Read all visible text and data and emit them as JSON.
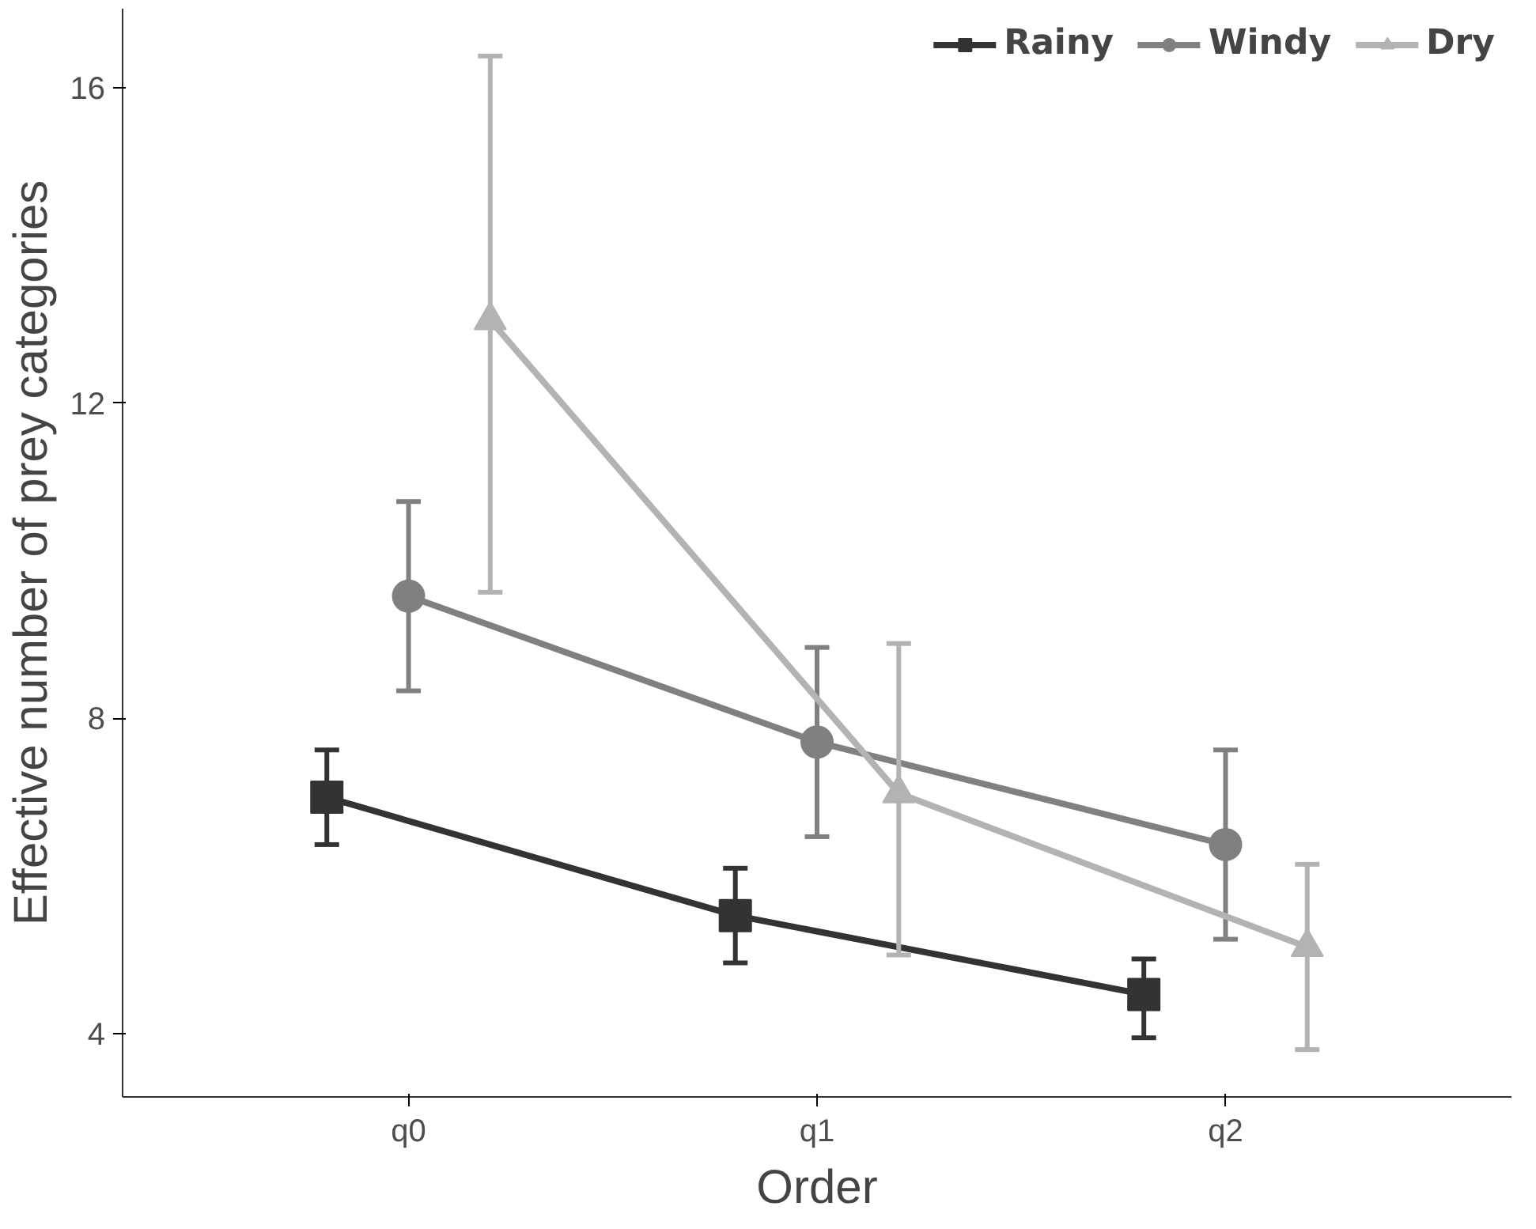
{
  "chart_data": {
    "type": "line",
    "xlabel": "Order",
    "ylabel": "Effective number of prey categories",
    "categories": [
      "q0",
      "q1",
      "q2"
    ],
    "ylim": [
      3.2,
      17
    ],
    "yticks": [
      4,
      8,
      12,
      16
    ],
    "grid": false,
    "legend": "top right",
    "series": [
      {
        "name": "Rainy",
        "color": "#333333",
        "marker": "square",
        "values": [
          7.0,
          5.5,
          4.5
        ],
        "errors": [
          [
            6.4,
            7.6
          ],
          [
            4.9,
            6.1
          ],
          [
            3.95,
            4.95
          ]
        ]
      },
      {
        "name": "Windy",
        "color": "#808080",
        "marker": "circle",
        "values": [
          9.55,
          7.7,
          6.4
        ],
        "errors": [
          [
            8.35,
            10.75
          ],
          [
            6.5,
            8.9
          ],
          [
            5.2,
            7.6
          ]
        ]
      },
      {
        "name": "Dry",
        "color": "#b3b3b3",
        "marker": "triangle",
        "values": [
          13.05,
          7.05,
          5.1
        ],
        "errors": [
          [
            9.6,
            16.4
          ],
          [
            5.0,
            8.95
          ],
          [
            3.8,
            6.15
          ]
        ]
      }
    ]
  }
}
